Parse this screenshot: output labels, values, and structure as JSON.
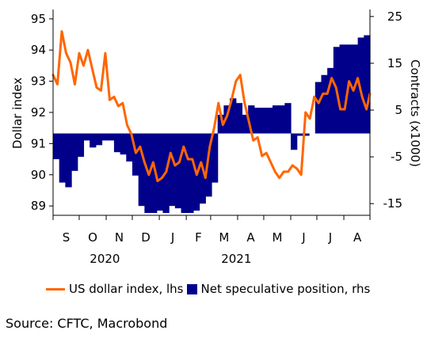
{
  "chart_data": {
    "type": "bar+line",
    "title": "",
    "left_axis": {
      "label": "Dollar index",
      "range": [
        88.7,
        95.3
      ],
      "ticks": [
        "89",
        "90",
        "91",
        "92",
        "93",
        "94",
        "95"
      ]
    },
    "right_axis": {
      "label": "Contracts (x1000)",
      "range": [
        -17.5,
        26.5
      ],
      "ticks": [
        "-15",
        "-5",
        "5",
        "15",
        "25"
      ]
    },
    "x_axis": {
      "month_labels": [
        "S",
        "O",
        "N",
        "D",
        "J",
        "F",
        "M",
        "A",
        "M",
        "J",
        "J",
        "A"
      ],
      "year_labels": [
        "2020",
        "2021"
      ],
      "start": "2020-09-01",
      "end": "2021-08-31"
    },
    "bar_baseline": 0,
    "series": [
      {
        "name": "Net speculative position, rhs",
        "type": "bar",
        "color": "#00008B",
        "axis": "right",
        "dates": [
          "2020-09-01",
          "2020-09-08",
          "2020-09-15",
          "2020-09-22",
          "2020-09-29",
          "2020-10-06",
          "2020-10-13",
          "2020-10-20",
          "2020-10-27",
          "2020-11-03",
          "2020-11-10",
          "2020-11-17",
          "2020-11-24",
          "2020-12-01",
          "2020-12-08",
          "2020-12-15",
          "2020-12-22",
          "2020-12-29",
          "2021-01-05",
          "2021-01-12",
          "2021-01-19",
          "2021-01-26",
          "2021-02-02",
          "2021-02-09",
          "2021-02-16",
          "2021-02-23",
          "2021-03-02",
          "2021-03-09",
          "2021-03-16",
          "2021-03-23",
          "2021-03-30",
          "2021-04-06",
          "2021-04-13",
          "2021-04-20",
          "2021-04-27",
          "2021-05-04",
          "2021-05-11",
          "2021-05-18",
          "2021-05-25",
          "2021-06-01",
          "2021-06-08",
          "2021-06-15",
          "2021-06-22",
          "2021-06-29",
          "2021-07-06",
          "2021-07-13",
          "2021-07-20",
          "2021-07-27",
          "2021-08-03",
          "2021-08-10",
          "2021-08-17",
          "2021-08-24"
        ],
        "values": [
          -5.5,
          -10.5,
          -11.5,
          -8,
          -5,
          -1.5,
          -3,
          -2.5,
          -1.5,
          -1.5,
          -4,
          -4.5,
          -6,
          -9,
          -15.5,
          -17,
          -17,
          -16.5,
          -17,
          -15.5,
          -16,
          -17,
          -17,
          -16.5,
          -15,
          -13.5,
          -10.5,
          4,
          6,
          7.5,
          6.5,
          4,
          6,
          5.5,
          5.5,
          5.5,
          6,
          6,
          6.5,
          -3.5,
          -0.5,
          -0.5,
          0,
          11,
          12.5,
          14,
          18.5,
          19,
          19,
          19,
          20.5,
          21
        ]
      },
      {
        "name": "US dollar index, lhs",
        "type": "line",
        "color": "#FF6600",
        "axis": "left",
        "dates": [
          "2020-09-01",
          "2020-09-06",
          "2020-09-11",
          "2020-09-16",
          "2020-09-21",
          "2020-09-26",
          "2020-10-01",
          "2020-10-06",
          "2020-10-11",
          "2020-10-16",
          "2020-10-21",
          "2020-10-26",
          "2020-10-31",
          "2020-11-05",
          "2020-11-10",
          "2020-11-15",
          "2020-11-20",
          "2020-11-25",
          "2020-11-30",
          "2020-12-05",
          "2020-12-10",
          "2020-12-15",
          "2020-12-20",
          "2020-12-25",
          "2020-12-30",
          "2021-01-04",
          "2021-01-09",
          "2021-01-14",
          "2021-01-19",
          "2021-01-24",
          "2021-01-29",
          "2021-02-03",
          "2021-02-08",
          "2021-02-13",
          "2021-02-18",
          "2021-02-23",
          "2021-02-28",
          "2021-03-05",
          "2021-03-10",
          "2021-03-15",
          "2021-03-20",
          "2021-03-25",
          "2021-03-30",
          "2021-04-04",
          "2021-04-09",
          "2021-04-14",
          "2021-04-19",
          "2021-04-24",
          "2021-04-29",
          "2021-05-04",
          "2021-05-09",
          "2021-05-14",
          "2021-05-19",
          "2021-05-24",
          "2021-05-29",
          "2021-06-03",
          "2021-06-08",
          "2021-06-13",
          "2021-06-18",
          "2021-06-23",
          "2021-06-28",
          "2021-07-03",
          "2021-07-08",
          "2021-07-13",
          "2021-07-18",
          "2021-07-23",
          "2021-07-28",
          "2021-08-02",
          "2021-08-07",
          "2021-08-12",
          "2021-08-17",
          "2021-08-22",
          "2021-08-27",
          "2021-08-31"
        ],
        "values": [
          93.2,
          92.9,
          94.6,
          93.9,
          93.6,
          92.9,
          93.9,
          93.5,
          94.0,
          93.4,
          92.8,
          92.7,
          93.9,
          92.4,
          92.5,
          92.2,
          92.3,
          91.6,
          91.3,
          90.7,
          90.9,
          90.4,
          90.0,
          90.4,
          89.8,
          89.9,
          90.1,
          90.7,
          90.3,
          90.4,
          90.9,
          90.5,
          90.5,
          90.0,
          90.4,
          89.9,
          90.9,
          91.5,
          92.3,
          91.6,
          91.9,
          92.4,
          93.0,
          93.2,
          92.3,
          91.7,
          91.1,
          91.2,
          90.6,
          90.7,
          90.4,
          90.1,
          89.9,
          90.1,
          90.1,
          90.3,
          90.2,
          90.0,
          92.0,
          91.8,
          92.5,
          92.3,
          92.6,
          92.6,
          93.1,
          92.8,
          92.1,
          92.1,
          93.0,
          92.7,
          93.1,
          92.5,
          92.1,
          92.6
        ]
      }
    ],
    "legend": {
      "placement": "bottom"
    },
    "grid": false
  },
  "source": "Source: CFTC, Macrobond"
}
